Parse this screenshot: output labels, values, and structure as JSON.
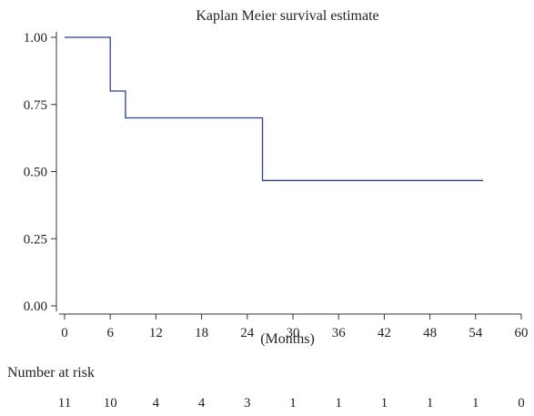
{
  "chart_data": {
    "type": "line",
    "title": "Kaplan Meier survival estimate",
    "xlabel": "(Months)",
    "ylabel": "",
    "xlim": [
      0,
      60
    ],
    "ylim": [
      0,
      1
    ],
    "x_ticks": [
      0,
      6,
      12,
      18,
      24,
      30,
      36,
      42,
      48,
      54,
      60
    ],
    "y_ticks": [
      0.0,
      0.25,
      0.5,
      0.75,
      1.0
    ],
    "y_tick_labels": [
      "0.00",
      "0.25",
      "0.50",
      "0.75",
      "1.00"
    ],
    "grid": false,
    "line_color": "#2b3f8c",
    "series": [
      {
        "step": true,
        "x": [
          0,
          6,
          8,
          26,
          55
        ],
        "y": [
          1.0,
          0.8,
          0.7,
          0.4667,
          0.4667
        ]
      }
    ],
    "risk_table": {
      "label": "Number at risk",
      "times": [
        0,
        6,
        12,
        18,
        24,
        30,
        36,
        42,
        48,
        54,
        60
      ],
      "values": [
        11,
        10,
        4,
        4,
        3,
        1,
        1,
        1,
        1,
        1,
        0
      ]
    }
  }
}
